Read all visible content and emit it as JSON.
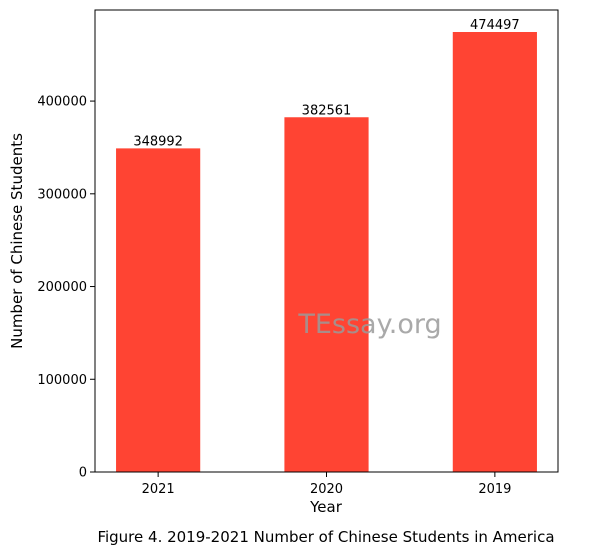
{
  "chart_data": {
    "type": "bar",
    "categories": [
      "2021",
      "2020",
      "2019"
    ],
    "values": [
      348992,
      382561,
      474497
    ],
    "data_labels": [
      "348992",
      "382561",
      "474497"
    ],
    "xlabel": "Year",
    "ylabel": "Number of Chinese Students",
    "ylim": [
      0,
      498222
    ],
    "yticks": [
      0,
      100000,
      200000,
      300000,
      400000
    ],
    "ytick_labels": [
      "0",
      "100000",
      "200000",
      "300000",
      "400000"
    ],
    "bar_color": "#ff4433",
    "grid": false,
    "legend": "none"
  },
  "watermark": "TEssay.org",
  "caption": "Figure 4. 2019-2021 Number of Chinese Students in America"
}
